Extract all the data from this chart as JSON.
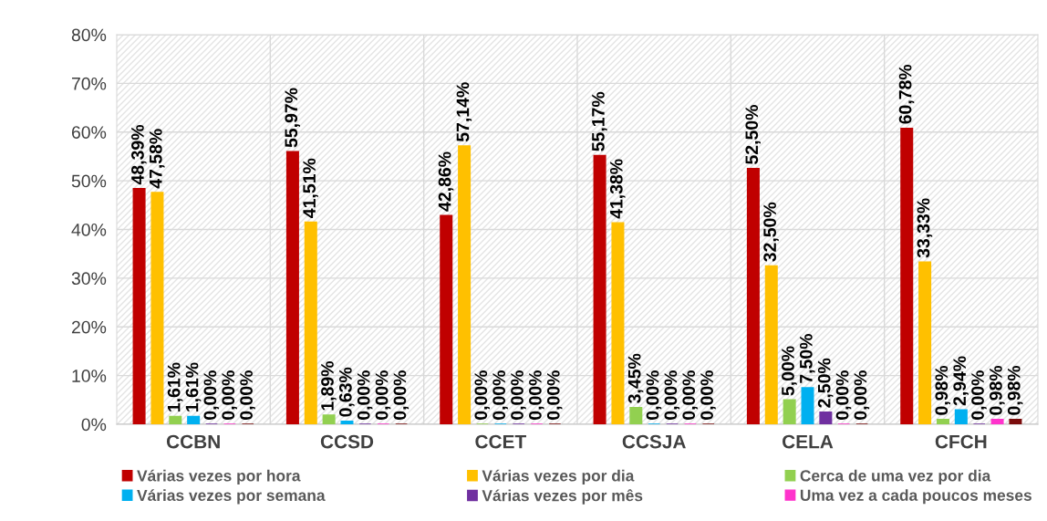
{
  "chart_data": {
    "type": "bar",
    "categories": [
      "CCBN",
      "CCSD",
      "CCET",
      "CCSJA",
      "CELA",
      "CFCH"
    ],
    "series": [
      {
        "name": "Várias vezes por hora",
        "color": "#c00000",
        "values": [
          48.39,
          55.97,
          42.86,
          55.17,
          52.5,
          60.78
        ],
        "value_labels": [
          "48,39%",
          "55,97%",
          "42,86%",
          "55,17%",
          "52,50%",
          "60,78%"
        ]
      },
      {
        "name": "Várias vezes por dia",
        "color": "#ffc000",
        "values": [
          47.58,
          41.51,
          57.14,
          41.38,
          32.5,
          33.33
        ],
        "value_labels": [
          "47,58%",
          "41,51%",
          "57,14%",
          "41,38%",
          "32,50%",
          "33,33%"
        ]
      },
      {
        "name": "Cerca de uma vez por dia",
        "color": "#92d050",
        "values": [
          1.61,
          1.89,
          0,
          3.45,
          5.0,
          0.98
        ],
        "value_labels": [
          "1,61%",
          "1,89%",
          "0,00%",
          "3,45%",
          "5,00%",
          "0,98%"
        ]
      },
      {
        "name": "Várias vezes por semana",
        "color": "#00b0f0",
        "values": [
          1.61,
          0.63,
          0,
          0,
          7.5,
          2.94
        ],
        "value_labels": [
          "1,61%",
          "0,63%",
          "0,00%",
          "0,00%",
          "7,50%",
          "2,94%"
        ]
      },
      {
        "name": "Várias vezes por mês",
        "color": "#7030a0",
        "values": [
          0,
          0,
          0,
          0,
          2.5,
          0
        ],
        "value_labels": [
          "0,00%",
          "0,00%",
          "0,00%",
          "0,00%",
          "2,50%",
          "0,00%"
        ]
      },
      {
        "name": "Uma vez a cada poucos meses",
        "color": "#ff33cc",
        "values": [
          0,
          0,
          0,
          0,
          0,
          0.98
        ],
        "value_labels": [
          "0,00%",
          "0,00%",
          "0,00%",
          "0,00%",
          "0,00%",
          "0,98%"
        ]
      },
      {
        "color": "#7b0c0c",
        "values": [
          0,
          0,
          0,
          0,
          0,
          0.98
        ],
        "value_labels": [
          "0,00%",
          "0,00%",
          "0,00%",
          "0,00%",
          "0,00%",
          "0,98%"
        ]
      }
    ],
    "ylim": [
      0,
      80
    ],
    "yticks": [
      {
        "value": 0,
        "label": "0%"
      },
      {
        "value": 10,
        "label": "10%"
      },
      {
        "value": 20,
        "label": "20%"
      },
      {
        "value": 30,
        "label": "30%"
      },
      {
        "value": 40,
        "label": "40%"
      },
      {
        "value": 50,
        "label": "50%"
      },
      {
        "value": 60,
        "label": "60%"
      },
      {
        "value": 70,
        "label": "70%"
      },
      {
        "value": 80,
        "label": "80%"
      }
    ],
    "grid": true,
    "legend": "bottom"
  }
}
